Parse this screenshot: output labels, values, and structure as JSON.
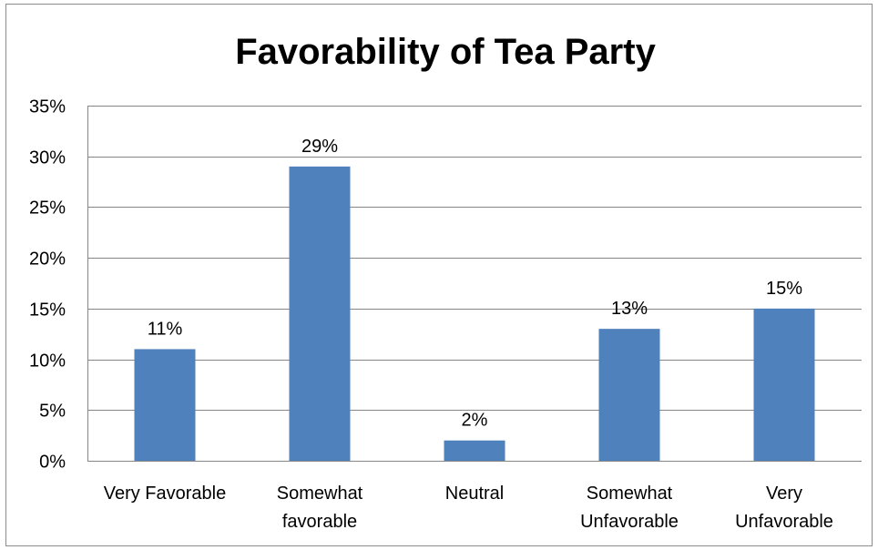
{
  "chart_data": {
    "type": "bar",
    "title": "Favorability of Tea Party",
    "categories": [
      [
        "Very Favorable"
      ],
      [
        "Somewhat",
        "favorable"
      ],
      [
        "Neutral"
      ],
      [
        "Somewhat",
        "Unfavorable"
      ],
      [
        "Very",
        "Unfavorable"
      ]
    ],
    "values": [
      11,
      29,
      2,
      13,
      15
    ],
    "value_labels": [
      "11%",
      "29%",
      "2%",
      "13%",
      "15%"
    ],
    "ylim": [
      0,
      35
    ],
    "yticks": [
      0,
      5,
      10,
      15,
      20,
      25,
      30,
      35
    ],
    "ytick_labels": [
      "0%",
      "5%",
      "10%",
      "15%",
      "20%",
      "25%",
      "30%",
      "35%"
    ],
    "grid": true,
    "legend": "none",
    "bar_color": "#4f81bd",
    "grid_color": "#868686"
  }
}
